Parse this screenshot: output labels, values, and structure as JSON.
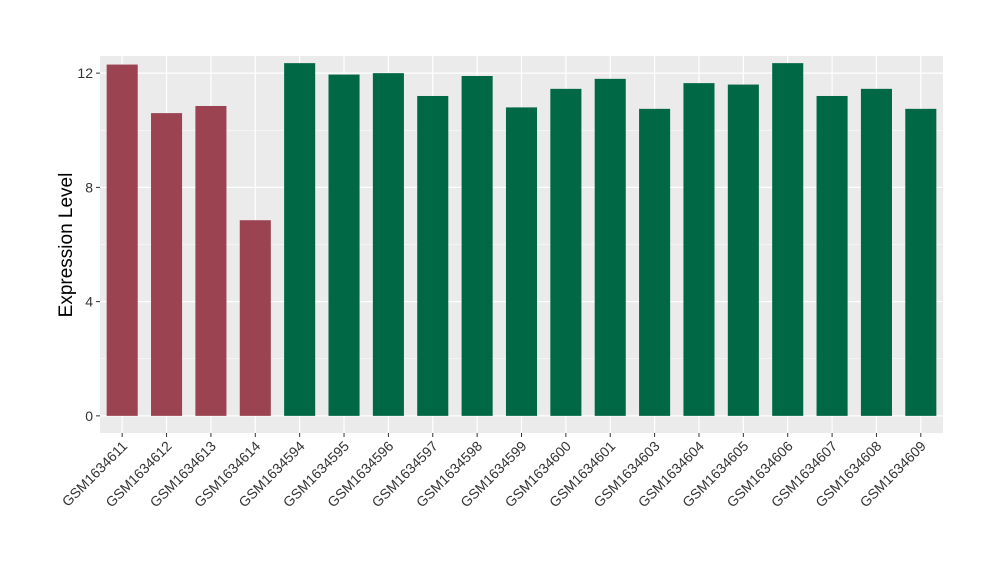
{
  "chart_data": {
    "type": "bar",
    "ylabel": "Expression Level",
    "ylim": [
      -0.6,
      12.6
    ],
    "yticks": [
      0,
      4,
      8,
      12
    ],
    "grid": true,
    "categories": [
      "GSM1634611",
      "GSM1634612",
      "GSM1634613",
      "GSM1634614",
      "GSM1634594",
      "GSM1634595",
      "GSM1634596",
      "GSM1634597",
      "GSM1634598",
      "GSM1634599",
      "GSM1634600",
      "GSM1634601",
      "GSM1634603",
      "GSM1634604",
      "GSM1634605",
      "GSM1634606",
      "GSM1634607",
      "GSM1634608",
      "GSM1634609"
    ],
    "values": [
      12.3,
      10.6,
      10.85,
      6.85,
      12.35,
      11.95,
      12.0,
      11.2,
      11.9,
      10.8,
      11.45,
      11.8,
      10.75,
      11.65,
      11.6,
      12.35,
      11.2,
      11.45,
      10.75
    ],
    "colors": [
      "#9b4350",
      "#9b4350",
      "#9b4350",
      "#9b4350",
      "#006845",
      "#006845",
      "#006845",
      "#006845",
      "#006845",
      "#006845",
      "#006845",
      "#006845",
      "#006845",
      "#006845",
      "#006845",
      "#006845",
      "#006845",
      "#006845",
      "#006845"
    ]
  }
}
